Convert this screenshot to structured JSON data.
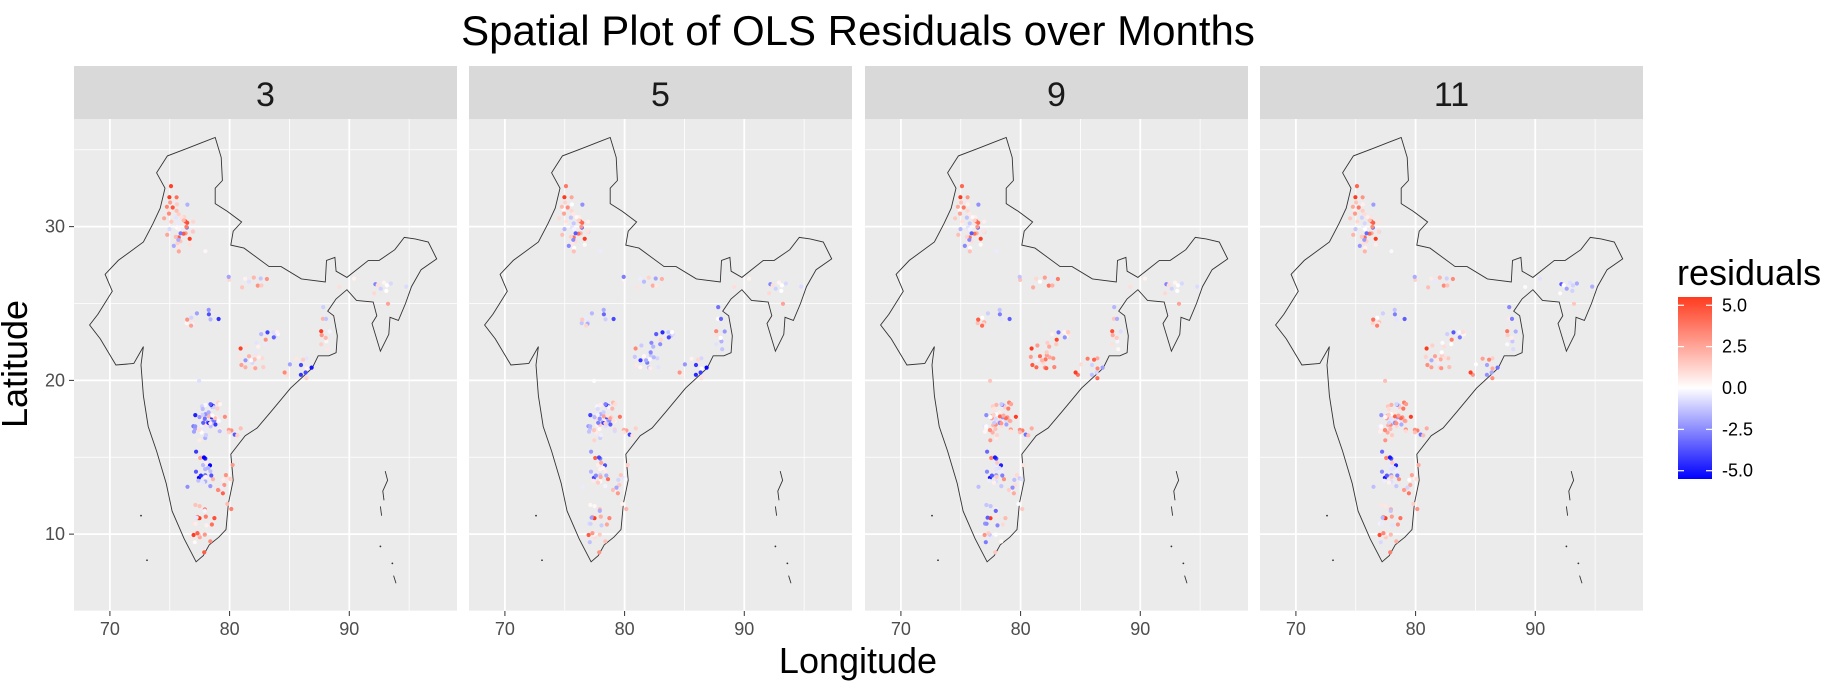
{
  "chart_data": {
    "type": "scatter",
    "title": "Spatial Plot of OLS Residuals over Months",
    "xlabel": "Longitude",
    "ylabel": "Latitude",
    "xlim": [
      67,
      99
    ],
    "ylim": [
      5,
      37
    ],
    "x_ticks": [
      70,
      80,
      90
    ],
    "x_tick_labels": [
      "70",
      "80",
      "90"
    ],
    "y_ticks": [
      10,
      20,
      30
    ],
    "y_tick_labels": [
      "10",
      "20",
      "30"
    ],
    "grid": true,
    "facets": [
      "3",
      "5",
      "9",
      "11"
    ],
    "color_scale": {
      "name": "residuals",
      "low_color": "#0000ff",
      "mid_color": "#ffffff",
      "high_color": "#ff3b1f",
      "range": [
        -5.5,
        5.5
      ],
      "breaks": [
        5.0,
        2.5,
        0.0,
        -2.5,
        -5.0
      ],
      "break_labels": [
        "5.0",
        "2.5",
        "0.0",
        "-2.5",
        "-5.0"
      ]
    },
    "legend_position": "right",
    "colors": {
      "panel_bg": "#ebebeb",
      "strip_bg": "#d9d9d9",
      "grid": "#ffffff",
      "border": "#333333"
    }
  }
}
